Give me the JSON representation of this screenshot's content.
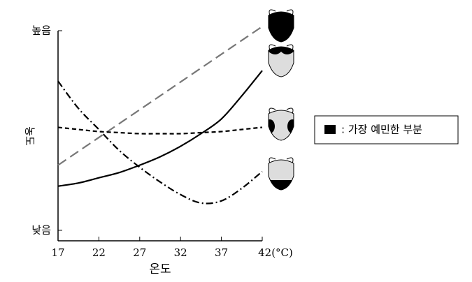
{
  "chart_data": {
    "type": "line",
    "x_label": "온도",
    "y_label": "농도",
    "x": [
      17,
      19.5,
      22,
      24.5,
      27,
      29.5,
      32,
      34.5,
      37,
      39.5,
      42
    ],
    "xlim": [
      17,
      42
    ],
    "xticks": [
      17,
      22,
      27,
      32,
      37,
      {
        "value": 42,
        "label": "42(°C)"
      }
    ],
    "ylim": [
      0,
      100
    ],
    "yticks": [
      {
        "value": 5,
        "label": "낮음"
      },
      {
        "value": 100,
        "label": "높음"
      }
    ],
    "series": [
      {
        "color": "#777777",
        "dash": "long",
        "values": [
          36,
          42.6,
          49.2,
          55.8,
          62.4,
          69,
          75.6,
          82.2,
          88.8,
          95.4,
          102
        ]
      },
      {
        "color": "#000000",
        "dash": "solid",
        "values": [
          26,
          27.5,
          30,
          32.5,
          36,
          40,
          45,
          51,
          58,
          69,
          81
        ]
      },
      {
        "color": "#000000",
        "dash": "short",
        "values": [
          54,
          53,
          52,
          51.5,
          51,
          51,
          51,
          51.5,
          52,
          53,
          54
        ]
      },
      {
        "color": "#000000",
        "dash": "dashdot",
        "values": [
          76,
          63,
          53,
          43,
          35,
          28,
          22,
          18,
          19,
          25,
          33
        ]
      }
    ],
    "legend": {
      "label": ": 가장 예민한 부분"
    }
  }
}
